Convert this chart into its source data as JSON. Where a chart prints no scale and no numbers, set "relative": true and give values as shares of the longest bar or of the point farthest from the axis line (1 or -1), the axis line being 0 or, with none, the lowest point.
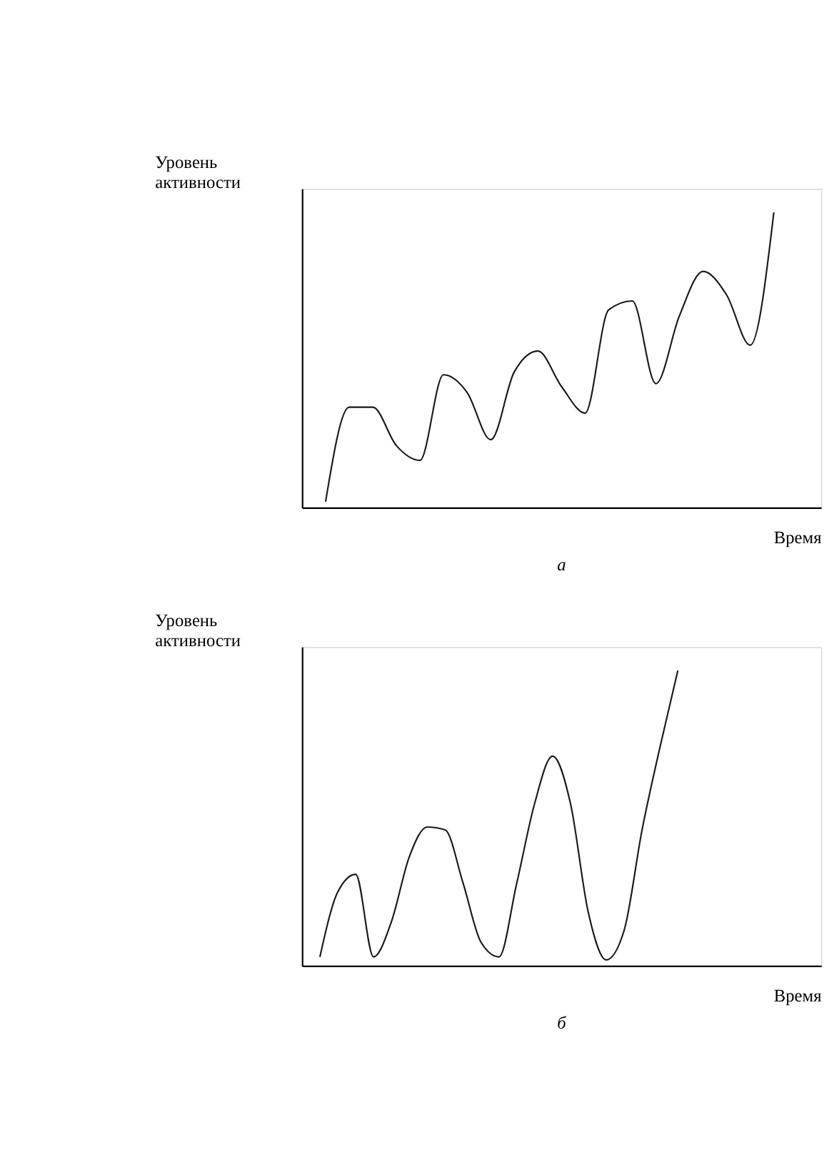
{
  "chart_data": [
    {
      "type": "line",
      "relative": true,
      "ylabel": "Уровень активности",
      "xlabel": "Время",
      "annotations": [
        "а"
      ],
      "tick_labels": false,
      "grid": false,
      "legend": false,
      "marker": "none",
      "line_style": "solid",
      "categories": [
        null,
        null,
        null,
        null,
        null,
        null,
        null,
        null,
        null,
        null,
        null,
        null,
        null,
        null,
        null,
        null,
        null,
        null,
        null,
        null,
        null
      ],
      "series": [
        {
          "color": "#1a1a1a",
          "values": [
            0.02,
            0.34,
            0.34,
            0.21,
            0.16,
            0.45,
            0.39,
            0.23,
            0.46,
            0.53,
            0.41,
            0.32,
            0.67,
            0.7,
            0.42,
            0.65,
            0.8,
            0.72,
            0.55,
            1.0,
            null
          ]
        }
      ]
    },
    {
      "type": "line",
      "relative": true,
      "ylabel": "Уровень активности",
      "xlabel": "Время",
      "annotations": [
        "б"
      ],
      "tick_labels": false,
      "grid": false,
      "legend": false,
      "marker": "none",
      "line_style": "solid",
      "categories": [
        null,
        null,
        null,
        null,
        null,
        null,
        null,
        null,
        null,
        null,
        null,
        null,
        null,
        null,
        null,
        null,
        null,
        null,
        null,
        null,
        null,
        null,
        null,
        null,
        null,
        null,
        null,
        null
      ],
      "series": [
        {
          "color": "#1a1a1a",
          "values": [
            0.03,
            0.25,
            0.31,
            0.03,
            0.15,
            0.37,
            0.47,
            0.46,
            0.28,
            0.08,
            0.03,
            0.28,
            0.55,
            0.71,
            0.55,
            0.18,
            0.02,
            0.12,
            0.46,
            0.74,
            1.0,
            null,
            null,
            null,
            null,
            null,
            null,
            null
          ]
        }
      ]
    }
  ]
}
